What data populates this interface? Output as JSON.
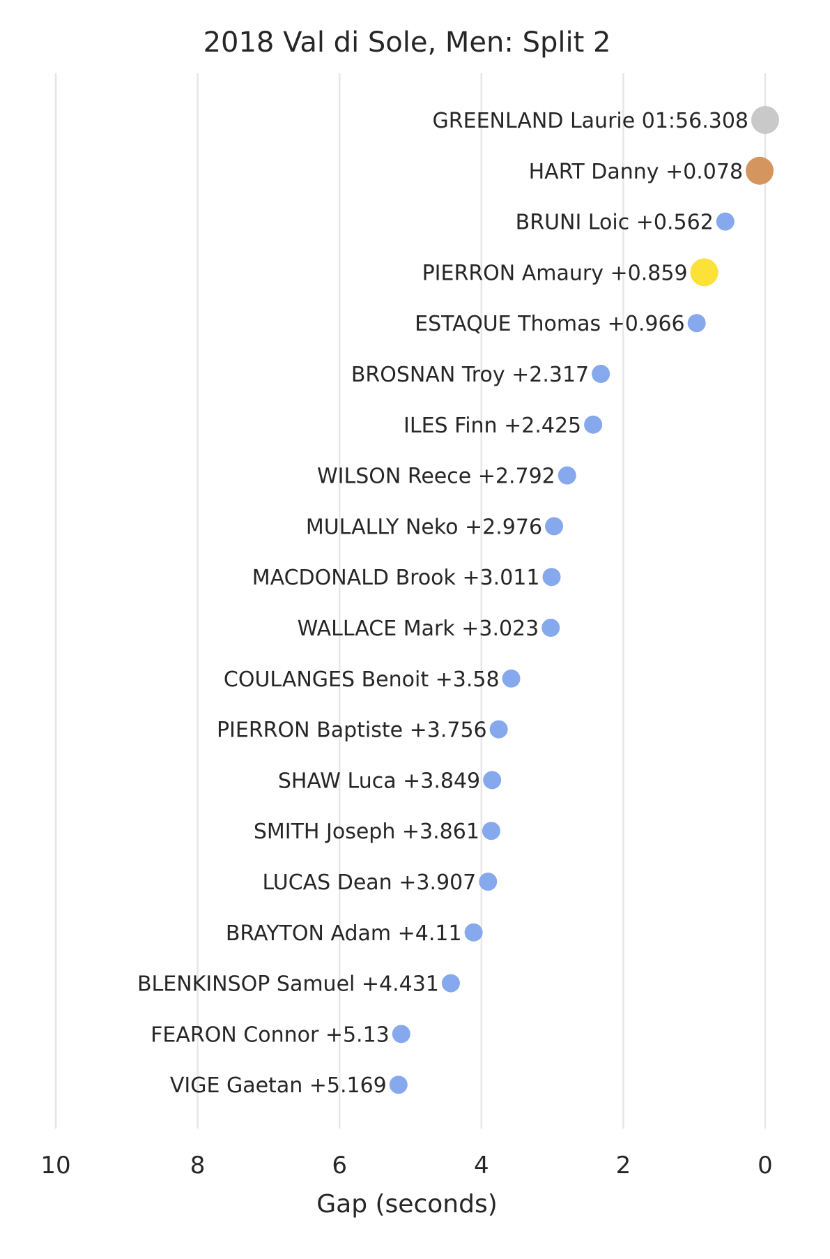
{
  "chart_data": {
    "type": "scatter",
    "title": "2018 Val di Sole, Men: Split 2",
    "xlabel": "Gap (seconds)",
    "ylabel": "",
    "xlim": [
      10,
      0
    ],
    "x_reversed": true,
    "x_ticks": [
      10,
      8,
      6,
      4,
      2,
      0
    ],
    "grid": "vertical",
    "legend": "none",
    "marker_colors": {
      "first": "#c9c9c9",
      "second": "#d4955f",
      "highlight": "#fce238",
      "default": "#86a8ec"
    },
    "points": [
      {
        "label": "GREENLAND Laurie 01:56.308",
        "gap": 0.0,
        "marker": "first"
      },
      {
        "label": "HART Danny +0.078",
        "gap": 0.078,
        "marker": "second"
      },
      {
        "label": "BRUNI Loic +0.562",
        "gap": 0.562,
        "marker": "default"
      },
      {
        "label": "PIERRON Amaury +0.859",
        "gap": 0.859,
        "marker": "highlight"
      },
      {
        "label": "ESTAQUE Thomas +0.966",
        "gap": 0.966,
        "marker": "default"
      },
      {
        "label": "BROSNAN Troy +2.317",
        "gap": 2.317,
        "marker": "default"
      },
      {
        "label": "ILES Finn +2.425",
        "gap": 2.425,
        "marker": "default"
      },
      {
        "label": "WILSON Reece +2.792",
        "gap": 2.792,
        "marker": "default"
      },
      {
        "label": "MULALLY Neko +2.976",
        "gap": 2.976,
        "marker": "default"
      },
      {
        "label": "MACDONALD Brook +3.011",
        "gap": 3.011,
        "marker": "default"
      },
      {
        "label": "WALLACE Mark +3.023",
        "gap": 3.023,
        "marker": "default"
      },
      {
        "label": "COULANGES Benoit +3.58",
        "gap": 3.58,
        "marker": "default"
      },
      {
        "label": "PIERRON Baptiste +3.756",
        "gap": 3.756,
        "marker": "default"
      },
      {
        "label": "SHAW Luca +3.849",
        "gap": 3.849,
        "marker": "default"
      },
      {
        "label": "SMITH Joseph +3.861",
        "gap": 3.861,
        "marker": "default"
      },
      {
        "label": "LUCAS Dean +3.907",
        "gap": 3.907,
        "marker": "default"
      },
      {
        "label": "BRAYTON Adam +4.11",
        "gap": 4.11,
        "marker": "default"
      },
      {
        "label": "BLENKINSOP Samuel +4.431",
        "gap": 4.431,
        "marker": "default"
      },
      {
        "label": "FEARON Connor +5.13",
        "gap": 5.13,
        "marker": "default"
      },
      {
        "label": "VIGE Gaetan +5.169",
        "gap": 5.169,
        "marker": "default"
      }
    ]
  }
}
